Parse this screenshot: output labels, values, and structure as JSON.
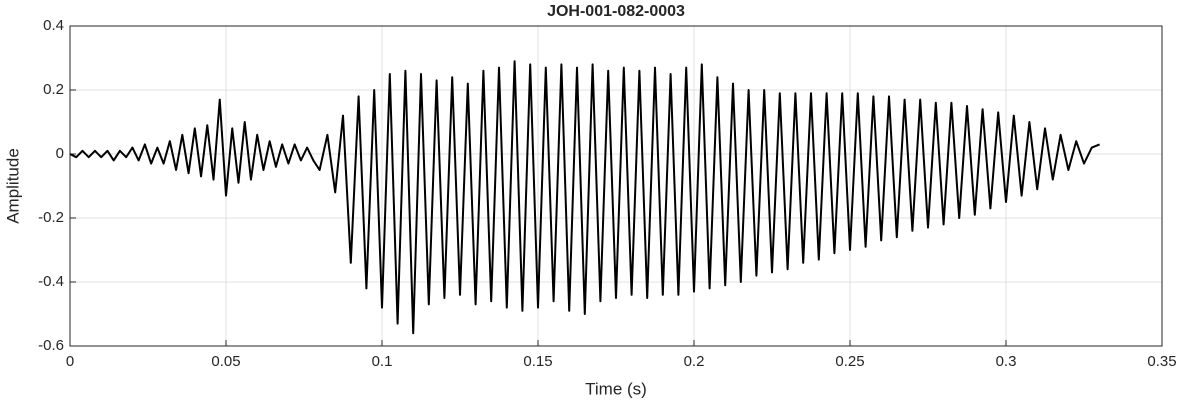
{
  "chart_data": {
    "type": "line",
    "title": "JOH-001-082-0003",
    "xlabel": "Time (s)",
    "ylabel": "Amplitude",
    "x": [
      0,
      0.002,
      0.004,
      0.006,
      0.008,
      0.01,
      0.012,
      0.014,
      0.016,
      0.018,
      0.02,
      0.022,
      0.024,
      0.026,
      0.028,
      0.03,
      0.032,
      0.034,
      0.036,
      0.038,
      0.04,
      0.042,
      0.044,
      0.046,
      0.048,
      0.05,
      0.052,
      0.054,
      0.056,
      0.058,
      0.06,
      0.062,
      0.064,
      0.066,
      0.068,
      0.07,
      0.072,
      0.074,
      0.076,
      0.078,
      0.08,
      0.0825,
      0.085,
      0.0875,
      0.09,
      0.0925,
      0.095,
      0.0975,
      0.1,
      0.1025,
      0.105,
      0.1075,
      0.11,
      0.1125,
      0.115,
      0.1175,
      0.12,
      0.1225,
      0.125,
      0.1275,
      0.13,
      0.1325,
      0.135,
      0.1375,
      0.14,
      0.1425,
      0.145,
      0.1475,
      0.15,
      0.1525,
      0.155,
      0.1575,
      0.16,
      0.1625,
      0.165,
      0.1675,
      0.17,
      0.1725,
      0.175,
      0.1775,
      0.18,
      0.1825,
      0.185,
      0.1875,
      0.19,
      0.1925,
      0.195,
      0.1975,
      0.2,
      0.2025,
      0.205,
      0.2075,
      0.21,
      0.2125,
      0.215,
      0.2175,
      0.22,
      0.2225,
      0.225,
      0.2275,
      0.23,
      0.2325,
      0.235,
      0.2375,
      0.24,
      0.2425,
      0.245,
      0.2475,
      0.25,
      0.2525,
      0.255,
      0.2575,
      0.26,
      0.2625,
      0.265,
      0.2675,
      0.27,
      0.2725,
      0.275,
      0.2775,
      0.28,
      0.2825,
      0.285,
      0.2875,
      0.29,
      0.2925,
      0.295,
      0.2975,
      0.3,
      0.3025,
      0.305,
      0.3075,
      0.31,
      0.3125,
      0.315,
      0.3175,
      0.32,
      0.3225,
      0.325,
      0.3275,
      0.33
    ],
    "series": [
      {
        "color": "#000000",
        "values": [
          0,
          -0.01,
          0.01,
          -0.01,
          0.01,
          -0.01,
          0.01,
          -0.02,
          0.01,
          -0.01,
          0.02,
          -0.02,
          0.03,
          -0.03,
          0.02,
          -0.03,
          0.04,
          -0.05,
          0.06,
          -0.06,
          0.08,
          -0.07,
          0.09,
          -0.08,
          0.17,
          -0.13,
          0.08,
          -0.09,
          0.1,
          -0.08,
          0.06,
          -0.05,
          0.04,
          -0.04,
          0.03,
          -0.03,
          0.03,
          -0.02,
          0.02,
          -0.02,
          -0.05,
          0.06,
          -0.12,
          0.12,
          -0.34,
          0.18,
          -0.42,
          0.2,
          -0.48,
          0.25,
          -0.53,
          0.26,
          -0.56,
          0.25,
          -0.47,
          0.23,
          -0.45,
          0.24,
          -0.44,
          0.22,
          -0.47,
          0.26,
          -0.46,
          0.27,
          -0.48,
          0.29,
          -0.49,
          0.28,
          -0.48,
          0.27,
          -0.46,
          0.28,
          -0.49,
          0.27,
          -0.5,
          0.28,
          -0.46,
          0.26,
          -0.45,
          0.27,
          -0.44,
          0.26,
          -0.45,
          0.27,
          -0.44,
          0.25,
          -0.44,
          0.27,
          -0.43,
          0.28,
          -0.42,
          0.24,
          -0.41,
          0.22,
          -0.4,
          0.2,
          -0.38,
          0.2,
          -0.37,
          0.19,
          -0.36,
          0.19,
          -0.34,
          0.19,
          -0.33,
          0.19,
          -0.31,
          0.19,
          -0.3,
          0.19,
          -0.29,
          0.18,
          -0.27,
          0.18,
          -0.26,
          0.17,
          -0.24,
          0.17,
          -0.23,
          0.16,
          -0.22,
          0.16,
          -0.2,
          0.15,
          -0.19,
          0.14,
          -0.17,
          0.13,
          -0.15,
          0.12,
          -0.13,
          0.1,
          -0.11,
          0.08,
          -0.08,
          0.06,
          -0.05,
          0.04,
          -0.03,
          0.02,
          0.03
        ]
      }
    ],
    "xlim": [
      0,
      0.35
    ],
    "xticks": [
      0,
      0.05,
      0.1,
      0.15,
      0.2,
      0.25,
      0.3,
      0.35
    ],
    "ylim": [
      -0.6,
      0.4
    ],
    "yticks": [
      -0.6,
      -0.4,
      -0.2,
      0,
      0.2,
      0.4
    ],
    "grid": true
  }
}
